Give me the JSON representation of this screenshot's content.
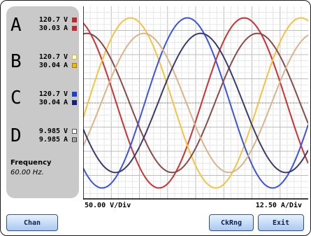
{
  "channels": [
    {
      "letter": "A",
      "voltage": "120.7",
      "v_unit": "V",
      "current": "30.03",
      "a_unit": "A",
      "color": "#c0282d",
      "swatch_style": "filled"
    },
    {
      "letter": "B",
      "voltage": "120.7",
      "v_unit": "V",
      "current": "30.04",
      "a_unit": "A",
      "color": "#f0b800",
      "swatch_style": "outline-v / filled-a"
    },
    {
      "letter": "C",
      "voltage": "120.7",
      "v_unit": "V",
      "current": "30.04",
      "a_unit": "A",
      "color": "#1f3fcc",
      "swatch_style": "filled"
    },
    {
      "letter": "D",
      "voltage": "9.985",
      "v_unit": "V",
      "current": "9.985",
      "a_unit": "A",
      "color": "#666666",
      "swatch_style": "outline"
    }
  ],
  "frequency": {
    "label": "Frequency",
    "value": "60.00 Hz."
  },
  "scales": {
    "voltage": "50.00 V/Div",
    "current": "12.50 A/Div"
  },
  "buttons": {
    "chan": "Chan",
    "ckrng": "CkRng",
    "exit": "Exit"
  },
  "colors": {
    "voltage_a": "#d03030",
    "voltage_b": "#f6c242",
    "voltage_c": "#3a52e6",
    "current_a": "#8a4a4a",
    "current_b": "#d9b48a",
    "current_c": "#3a3a72",
    "button_fill": "#a9c8ee",
    "panel": "#c9c9c9"
  },
  "waveform": {
    "grid_divisions_x": 8,
    "grid_divisions_y": 8,
    "phases_deg": [
      0,
      120,
      240
    ]
  }
}
